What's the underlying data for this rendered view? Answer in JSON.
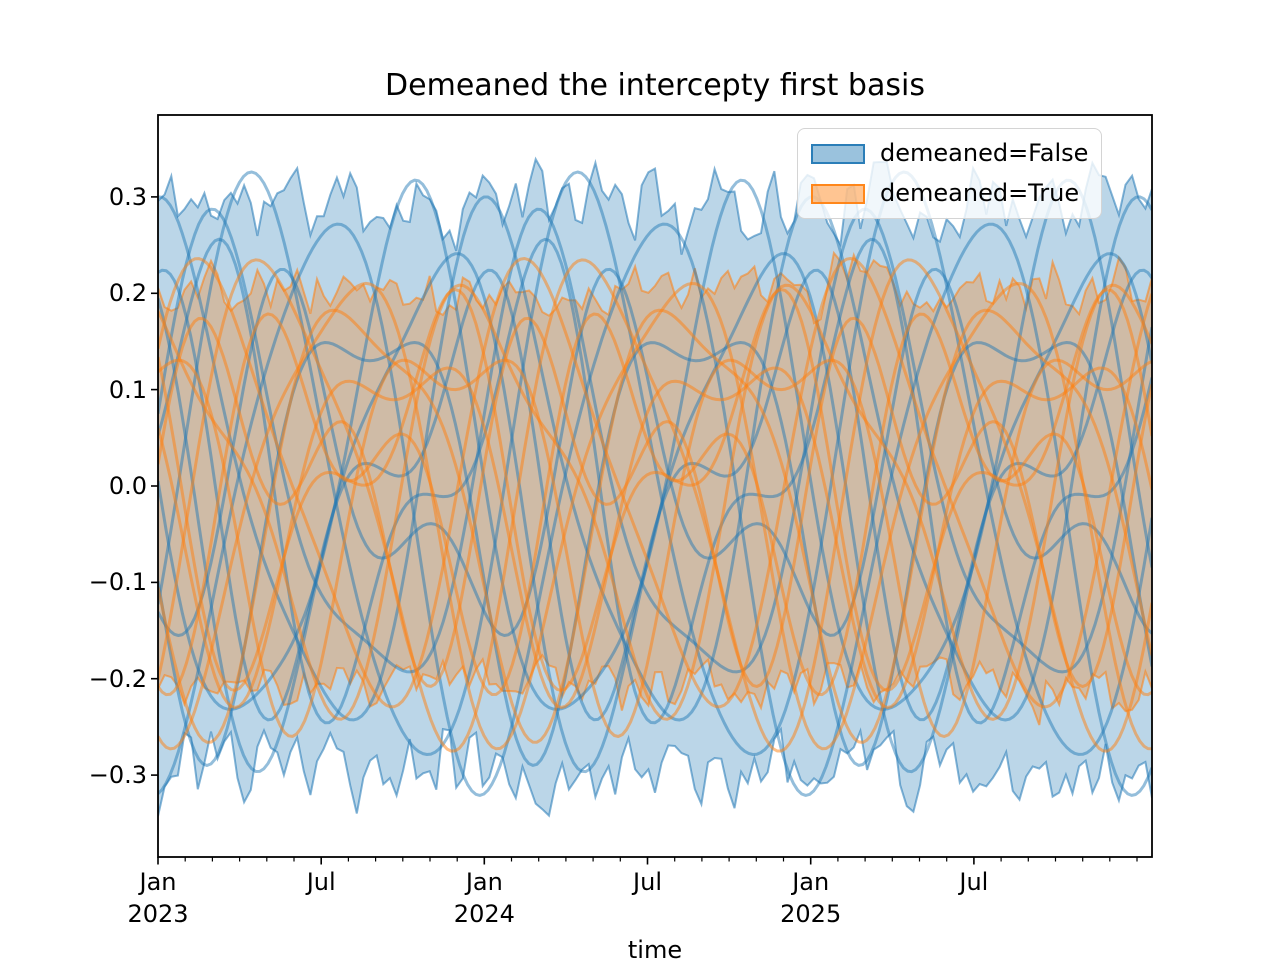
{
  "chart_data": {
    "type": "line+area",
    "title": "Demeaned the intercepty first basis",
    "xlabel": "time",
    "grid": false,
    "legend_position": "upper right",
    "ylim": [
      -0.385,
      0.385
    ],
    "yticks": [
      {
        "value": 0.3,
        "label": "0.3"
      },
      {
        "value": 0.2,
        "label": "0.2"
      },
      {
        "value": 0.1,
        "label": "0.1"
      },
      {
        "value": 0.0,
        "label": "0.0"
      },
      {
        "value": -0.1,
        "label": "−0.1"
      },
      {
        "value": -0.2,
        "label": "−0.2"
      },
      {
        "value": -0.3,
        "label": "−0.3"
      }
    ],
    "x_domain_months": [
      0,
      36.55
    ],
    "x_start": "2023-01",
    "x_end": "2026-01",
    "x_major_ticks": [
      {
        "month": 0,
        "label": "Jan\n2023"
      },
      {
        "month": 6,
        "label": "Jul"
      },
      {
        "month": 12,
        "label": "Jan\n2024"
      },
      {
        "month": 18,
        "label": "Jul"
      },
      {
        "month": 24,
        "label": "Jan\n2025"
      },
      {
        "month": 30,
        "label": "Jul"
      }
    ],
    "x_minor_tick_every_months": 1,
    "legend": [
      {
        "label": "demeaned=False",
        "color": "#1f77b4"
      },
      {
        "label": "demeaned=True",
        "color": "#ff7f0e"
      }
    ],
    "bands": [
      {
        "name": "demeaned=False",
        "color": "#1f77b4",
        "fill_opacity": 0.3,
        "edge_opacity": 0.55,
        "upper": {
          "mean": 0.295,
          "noise": 0.05,
          "seed": 11
        },
        "lower": {
          "mean": -0.295,
          "noise": 0.05,
          "seed": 23
        },
        "points": 150
      },
      {
        "name": "demeaned=True",
        "color": "#ff7f0e",
        "fill_opacity": 0.3,
        "edge_opacity": 0.55,
        "upper": {
          "mean": 0.205,
          "noise": 0.032,
          "seed": 37
        },
        "lower": {
          "mean": -0.205,
          "noise": 0.032,
          "seed": 49
        },
        "points": 150
      }
    ],
    "period_months": 12,
    "samples_per_line": 244,
    "line_width": 3,
    "series": [
      {
        "group": "demeaned=False",
        "color": "#1f77b4",
        "opacity": 0.48,
        "a": 0.29,
        "p": 3.1,
        "b": 0.04,
        "q": 0.8
      },
      {
        "group": "demeaned=False",
        "color": "#1f77b4",
        "opacity": 0.48,
        "a": 0.27,
        "p": 6.3,
        "b": 0.05,
        "q": 2.2
      },
      {
        "group": "demeaned=False",
        "color": "#1f77b4",
        "opacity": 0.48,
        "a": 0.26,
        "p": 9.4,
        "b": 0.05,
        "q": 4.1
      },
      {
        "group": "demeaned=False",
        "color": "#1f77b4",
        "opacity": 0.48,
        "a": 0.3,
        "p": 0.6,
        "b": 0.03,
        "q": 1.5
      },
      {
        "group": "demeaned=False",
        "color": "#1f77b4",
        "opacity": 0.48,
        "a": 0.21,
        "p": 4.8,
        "b": 0.08,
        "q": 3.3
      },
      {
        "group": "demeaned=False",
        "color": "#1f77b4",
        "opacity": 0.48,
        "a": 0.17,
        "p": 8.0,
        "b": 0.1,
        "q": 5.2
      },
      {
        "group": "demeaned=False",
        "color": "#1f77b4",
        "opacity": 0.48,
        "a": 0.23,
        "p": 11.2,
        "b": 0.06,
        "q": 0.3
      },
      {
        "group": "demeaned=False",
        "color": "#1f77b4",
        "opacity": 0.48,
        "a": 0.14,
        "p": 2.0,
        "b": 0.09,
        "q": 2.9
      },
      {
        "group": "demeaned=False",
        "color": "#1f77b4",
        "opacity": 0.48,
        "a": 0.25,
        "p": 7.1,
        "b": 0.06,
        "q": 4.7
      },
      {
        "group": "demeaned=False",
        "color": "#1f77b4",
        "opacity": 0.48,
        "a": 0.19,
        "p": 10.3,
        "b": 0.1,
        "q": 1.2
      },
      {
        "group": "demeaned=True",
        "color": "#ff7f0e",
        "opacity": 0.5,
        "a": 0.24,
        "p": 1.4,
        "b": 0.05,
        "q": 0.9
      },
      {
        "group": "demeaned=True",
        "color": "#ff7f0e",
        "opacity": 0.5,
        "a": 0.21,
        "p": 4.6,
        "b": 0.06,
        "q": 3.6
      },
      {
        "group": "demeaned=True",
        "color": "#ff7f0e",
        "opacity": 0.5,
        "a": 0.18,
        "p": 7.9,
        "b": 0.08,
        "q": 0.4
      },
      {
        "group": "demeaned=True",
        "color": "#ff7f0e",
        "opacity": 0.5,
        "a": 0.22,
        "p": 11.0,
        "b": 0.04,
        "q": 5.1
      },
      {
        "group": "demeaned=True",
        "color": "#ff7f0e",
        "opacity": 0.5,
        "a": 0.13,
        "p": 2.6,
        "b": 0.1,
        "q": 2.1
      },
      {
        "group": "demeaned=True",
        "color": "#ff7f0e",
        "opacity": 0.5,
        "a": 0.16,
        "p": 5.9,
        "b": 0.07,
        "q": 4.3
      },
      {
        "group": "demeaned=True",
        "color": "#ff7f0e",
        "opacity": 0.5,
        "a": 0.2,
        "p": 9.1,
        "b": 0.06,
        "q": 2.7
      },
      {
        "group": "demeaned=True",
        "color": "#ff7f0e",
        "opacity": 0.5,
        "a": 0.11,
        "p": 0.2,
        "b": 0.11,
        "q": 5.7
      },
      {
        "group": "demeaned=True",
        "color": "#ff7f0e",
        "opacity": 0.5,
        "a": 0.23,
        "p": 3.8,
        "b": 0.05,
        "q": 1.6
      },
      {
        "group": "demeaned=True",
        "color": "#ff7f0e",
        "opacity": 0.5,
        "a": 0.15,
        "p": 6.8,
        "b": 0.09,
        "q": 3.9
      }
    ]
  }
}
